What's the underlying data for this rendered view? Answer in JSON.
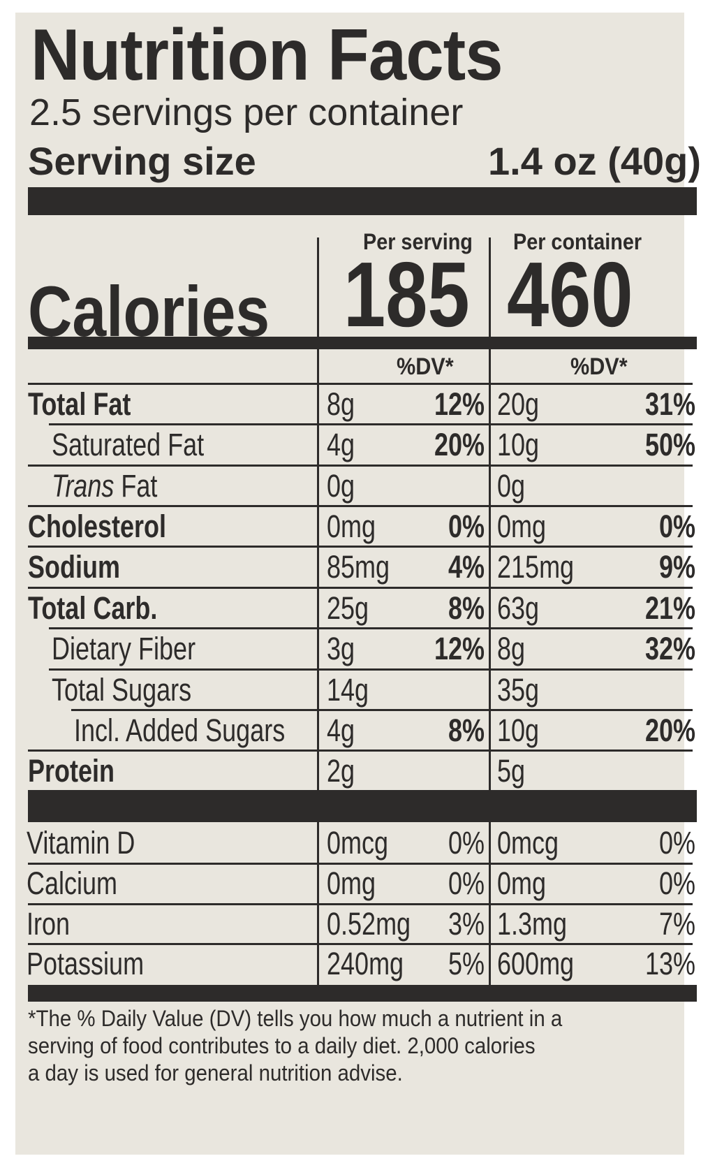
{
  "title": "Nutrition Facts",
  "servings_per_container": "2.5 servings per container",
  "serving_size_label": "Serving size",
  "serving_size_value": "1.4 oz (40g)",
  "per_serving_label": "Per serving",
  "per_container_label": "Per container",
  "calories_label": "Calories",
  "calories_per_serving": "185",
  "calories_per_container": "460",
  "dv_header": "%DV*",
  "nutrients": [
    {
      "name": "Total Fat",
      "serving_amount": "8g",
      "serving_dv": "12%",
      "container_amount": "20g",
      "container_dv": "31%"
    },
    {
      "name": "Saturated Fat",
      "serving_amount": "4g",
      "serving_dv": "20%",
      "container_amount": "10g",
      "container_dv": "50%"
    },
    {
      "name_italic": "Trans",
      "name_rest": " Fat",
      "serving_amount": "0g",
      "serving_dv": "",
      "container_amount": "0g",
      "container_dv": ""
    },
    {
      "name": "Cholesterol",
      "serving_amount": "0mg",
      "serving_dv": "0%",
      "container_amount": "0mg",
      "container_dv": "0%"
    },
    {
      "name": "Sodium",
      "serving_amount": "85mg",
      "serving_dv": "4%",
      "container_amount": "215mg",
      "container_dv": "9%"
    },
    {
      "name": "Total Carb.",
      "serving_amount": "25g",
      "serving_dv": "8%",
      "container_amount": "63g",
      "container_dv": "21%"
    },
    {
      "name": "Dietary Fiber",
      "serving_amount": "3g",
      "serving_dv": "12%",
      "container_amount": "8g",
      "container_dv": "32%"
    },
    {
      "name": "Total Sugars",
      "serving_amount": "14g",
      "serving_dv": "",
      "container_amount": "35g",
      "container_dv": ""
    },
    {
      "name": "Incl. Added Sugars",
      "serving_amount": "4g",
      "serving_dv": "8%",
      "container_amount": "10g",
      "container_dv": "20%"
    },
    {
      "name": "Protein",
      "serving_amount": "2g",
      "serving_dv": "",
      "container_amount": "5g",
      "container_dv": ""
    }
  ],
  "vitamins": [
    {
      "name": "Vitamin D",
      "serving_amount": "0mcg",
      "serving_dv": "0%",
      "container_amount": "0mcg",
      "container_dv": "0%"
    },
    {
      "name": "Calcium",
      "serving_amount": "0mg",
      "serving_dv": "0%",
      "container_amount": "0mg",
      "container_dv": "0%"
    },
    {
      "name": "Iron",
      "serving_amount": "0.52mg",
      "serving_dv": "3%",
      "container_amount": "1.3mg",
      "container_dv": "7%"
    },
    {
      "name": "Potassium",
      "serving_amount": "240mg",
      "serving_dv": "5%",
      "container_amount": "600mg",
      "container_dv": "13%"
    }
  ],
  "footnote_lines": [
    "*The % Daily Value (DV) tells you how much a nutrient in a",
    "serving of food contributes to a daily diet. 2,000 calories",
    "a day is used for general nutrition advise."
  ]
}
